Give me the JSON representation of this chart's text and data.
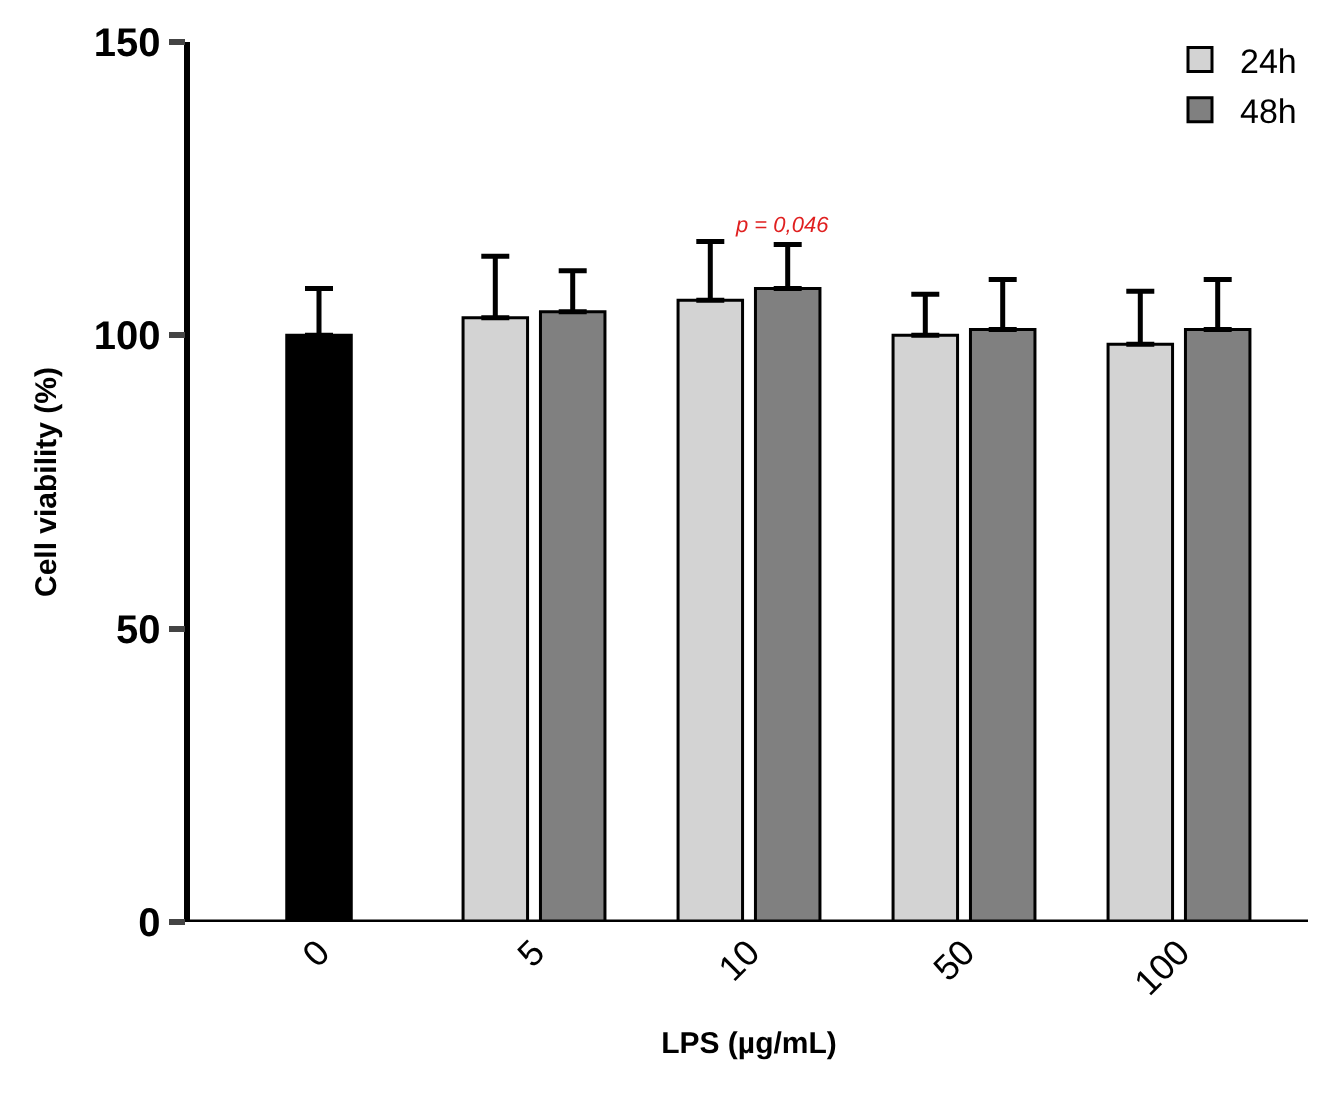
{
  "chart_data": {
    "type": "bar",
    "xlabel": "LPS (µg/mL)",
    "ylabel": "Cell viability (%)",
    "categories": [
      "0",
      "5",
      "10",
      "50",
      "100"
    ],
    "series": [
      {
        "color": "#000000",
        "values": [
          100,
          null,
          null,
          null,
          null
        ],
        "errors": [
          [
            100,
            108
          ],
          null,
          null,
          null,
          null
        ]
      },
      {
        "name": "24h",
        "color": "#d3d3d3",
        "values": [
          null,
          103,
          106,
          100,
          98.5
        ],
        "errors": [
          null,
          [
            103,
            113.5
          ],
          [
            106,
            116
          ],
          [
            100,
            107
          ],
          [
            98.5,
            107.5
          ]
        ]
      },
      {
        "name": "48h",
        "color": "#808080",
        "values": [
          null,
          104,
          108,
          101,
          101
        ],
        "errors": [
          null,
          [
            104,
            111
          ],
          [
            108,
            115.5
          ],
          [
            101,
            109.5
          ],
          [
            101,
            109.5
          ]
        ]
      }
    ],
    "annotations": [
      "p = 0,046"
    ],
    "ylim": [
      0,
      150
    ],
    "yticks": [
      0,
      50,
      100,
      150
    ],
    "legend": "top right"
  }
}
